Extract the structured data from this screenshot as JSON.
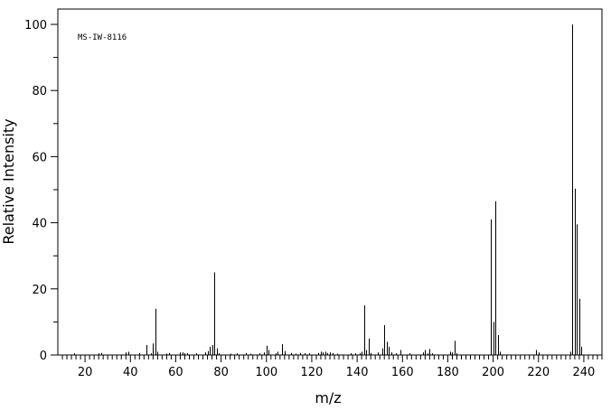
{
  "chart_data": {
    "type": "bar",
    "annotation": "MS-IW-8116",
    "xlabel": "m/z",
    "ylabel": "Relative Intensity",
    "xlim": [
      8,
      248
    ],
    "ylim": [
      0,
      100
    ],
    "x_major_ticks": [
      20,
      40,
      60,
      80,
      100,
      120,
      140,
      160,
      180,
      200,
      220,
      240
    ],
    "x_minor_step": 2,
    "y_major_ticks": [
      0,
      20,
      40,
      60,
      80,
      100
    ],
    "y_minor_step": 10,
    "x_tick_labels": [
      "20",
      "40",
      "60",
      "80",
      "100",
      "120",
      "140",
      "160",
      "180",
      "200",
      "220",
      "240"
    ],
    "y_tick_labels": [
      "0",
      "20",
      "40",
      "60",
      "80",
      "100"
    ],
    "grid": false,
    "peaks": [
      {
        "x": 15,
        "y": 0.5
      },
      {
        "x": 26,
        "y": 0.5
      },
      {
        "x": 27,
        "y": 0.6
      },
      {
        "x": 38,
        "y": 0.8
      },
      {
        "x": 39,
        "y": 1.0
      },
      {
        "x": 44,
        "y": 0.6
      },
      {
        "x": 47,
        "y": 3.0
      },
      {
        "x": 49,
        "y": 0.5
      },
      {
        "x": 50,
        "y": 3.5
      },
      {
        "x": 51,
        "y": 14.0
      },
      {
        "x": 52,
        "y": 1.0
      },
      {
        "x": 56,
        "y": 0.4
      },
      {
        "x": 57,
        "y": 0.6
      },
      {
        "x": 62,
        "y": 0.8
      },
      {
        "x": 63,
        "y": 0.8
      },
      {
        "x": 64,
        "y": 0.5
      },
      {
        "x": 65,
        "y": 0.5
      },
      {
        "x": 69,
        "y": 0.5
      },
      {
        "x": 73,
        "y": 0.8
      },
      {
        "x": 74,
        "y": 1.2
      },
      {
        "x": 75,
        "y": 2.5
      },
      {
        "x": 76,
        "y": 3.0
      },
      {
        "x": 77,
        "y": 25.0
      },
      {
        "x": 78,
        "y": 2.0
      },
      {
        "x": 79,
        "y": 0.5
      },
      {
        "x": 84,
        "y": 0.4
      },
      {
        "x": 87,
        "y": 0.5
      },
      {
        "x": 91,
        "y": 0.6
      },
      {
        "x": 93,
        "y": 0.4
      },
      {
        "x": 97,
        "y": 0.5
      },
      {
        "x": 99,
        "y": 0.8
      },
      {
        "x": 100,
        "y": 2.8
      },
      {
        "x": 101,
        "y": 1.5
      },
      {
        "x": 104,
        "y": 0.5
      },
      {
        "x": 105,
        "y": 1.0
      },
      {
        "x": 107,
        "y": 3.3
      },
      {
        "x": 108,
        "y": 1.2
      },
      {
        "x": 111,
        "y": 0.6
      },
      {
        "x": 113,
        "y": 0.4
      },
      {
        "x": 115,
        "y": 0.6
      },
      {
        "x": 117,
        "y": 0.5
      },
      {
        "x": 119,
        "y": 0.5
      },
      {
        "x": 123,
        "y": 0.6
      },
      {
        "x": 124,
        "y": 1.0
      },
      {
        "x": 125,
        "y": 0.8
      },
      {
        "x": 126,
        "y": 1.0
      },
      {
        "x": 127,
        "y": 0.6
      },
      {
        "x": 128,
        "y": 0.8
      },
      {
        "x": 129,
        "y": 0.6
      },
      {
        "x": 131,
        "y": 0.4
      },
      {
        "x": 137,
        "y": 0.5
      },
      {
        "x": 139,
        "y": 0.5
      },
      {
        "x": 141,
        "y": 0.6
      },
      {
        "x": 142,
        "y": 1.0
      },
      {
        "x": 143,
        "y": 15.0
      },
      {
        "x": 144,
        "y": 1.5
      },
      {
        "x": 145,
        "y": 5.0
      },
      {
        "x": 146,
        "y": 0.6
      },
      {
        "x": 149,
        "y": 0.8
      },
      {
        "x": 151,
        "y": 2.0
      },
      {
        "x": 152,
        "y": 9.0
      },
      {
        "x": 153,
        "y": 4.0
      },
      {
        "x": 154,
        "y": 2.5
      },
      {
        "x": 155,
        "y": 0.8
      },
      {
        "x": 157,
        "y": 0.5
      },
      {
        "x": 159,
        "y": 1.5
      },
      {
        "x": 163,
        "y": 0.5
      },
      {
        "x": 169,
        "y": 0.8
      },
      {
        "x": 170,
        "y": 1.5
      },
      {
        "x": 171,
        "y": 0.5
      },
      {
        "x": 172,
        "y": 1.8
      },
      {
        "x": 173,
        "y": 0.5
      },
      {
        "x": 181,
        "y": 1.0
      },
      {
        "x": 182,
        "y": 0.8
      },
      {
        "x": 183,
        "y": 4.3
      },
      {
        "x": 184,
        "y": 0.5
      },
      {
        "x": 199,
        "y": 41.0
      },
      {
        "x": 200,
        "y": 10.0
      },
      {
        "x": 201,
        "y": 46.5
      },
      {
        "x": 202,
        "y": 6.0
      },
      {
        "x": 203,
        "y": 1.0
      },
      {
        "x": 219,
        "y": 1.5
      },
      {
        "x": 220,
        "y": 0.8
      },
      {
        "x": 234,
        "y": 1.0
      },
      {
        "x": 235,
        "y": 100.0
      },
      {
        "x": 236,
        "y": 50.3
      },
      {
        "x": 237,
        "y": 39.5
      },
      {
        "x": 238,
        "y": 17.0
      },
      {
        "x": 239,
        "y": 2.5
      }
    ]
  }
}
